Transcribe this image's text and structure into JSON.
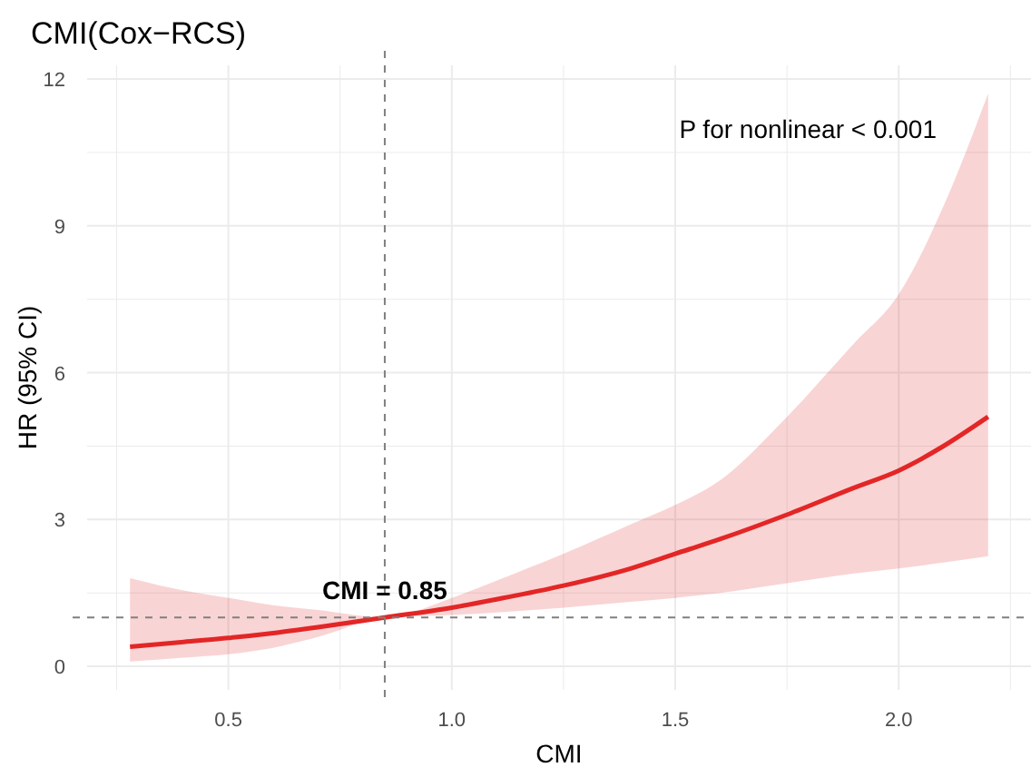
{
  "chart_data": {
    "type": "line",
    "title": "CMI(Cox−RCS)",
    "xlabel": "CMI",
    "ylabel": "HR (95% CI)",
    "x": [
      0.28,
      0.4,
      0.5,
      0.6,
      0.7,
      0.85,
      1.0,
      1.1,
      1.25,
      1.4,
      1.5,
      1.6,
      1.75,
      1.9,
      2.0,
      2.1,
      2.2
    ],
    "series": [
      {
        "color": "#e32626",
        "values": [
          0.4,
          0.5,
          0.58,
          0.68,
          0.8,
          1.0,
          1.2,
          1.37,
          1.65,
          2.0,
          2.3,
          2.6,
          3.1,
          3.65,
          4.0,
          4.5,
          5.1
        ],
        "lower": [
          0.1,
          0.18,
          0.25,
          0.38,
          0.6,
          1.0,
          1.05,
          1.1,
          1.2,
          1.32,
          1.4,
          1.5,
          1.7,
          1.9,
          2.0,
          2.12,
          2.25
        ],
        "upper": [
          1.8,
          1.55,
          1.4,
          1.25,
          1.15,
          1.0,
          1.4,
          1.75,
          2.3,
          2.9,
          3.3,
          3.8,
          5.1,
          6.6,
          7.6,
          9.4,
          11.7
        ]
      }
    ],
    "xlim": [
      0.184,
      2.296
    ],
    "ylim": [
      -0.48,
      12.28
    ],
    "xticks": [
      0.5,
      {
        "value": 1,
        "label": "1.0"
      },
      1.5,
      {
        "value": 2,
        "label": "2.0"
      }
    ],
    "yticks": [
      0,
      3,
      6,
      9,
      12
    ],
    "grid": true,
    "ref_lines": [
      {
        "axis": "x",
        "value": 0.85,
        "line_style": "dashed",
        "color": "#808080"
      },
      {
        "axis": "y",
        "value": 1,
        "line_style": "dashed",
        "color": "#808080"
      }
    ],
    "annotations": [
      {
        "text": "CMI = 0.85",
        "x": 0.85,
        "y": 1
      },
      "P for nonlinear < 0.001"
    ]
  }
}
